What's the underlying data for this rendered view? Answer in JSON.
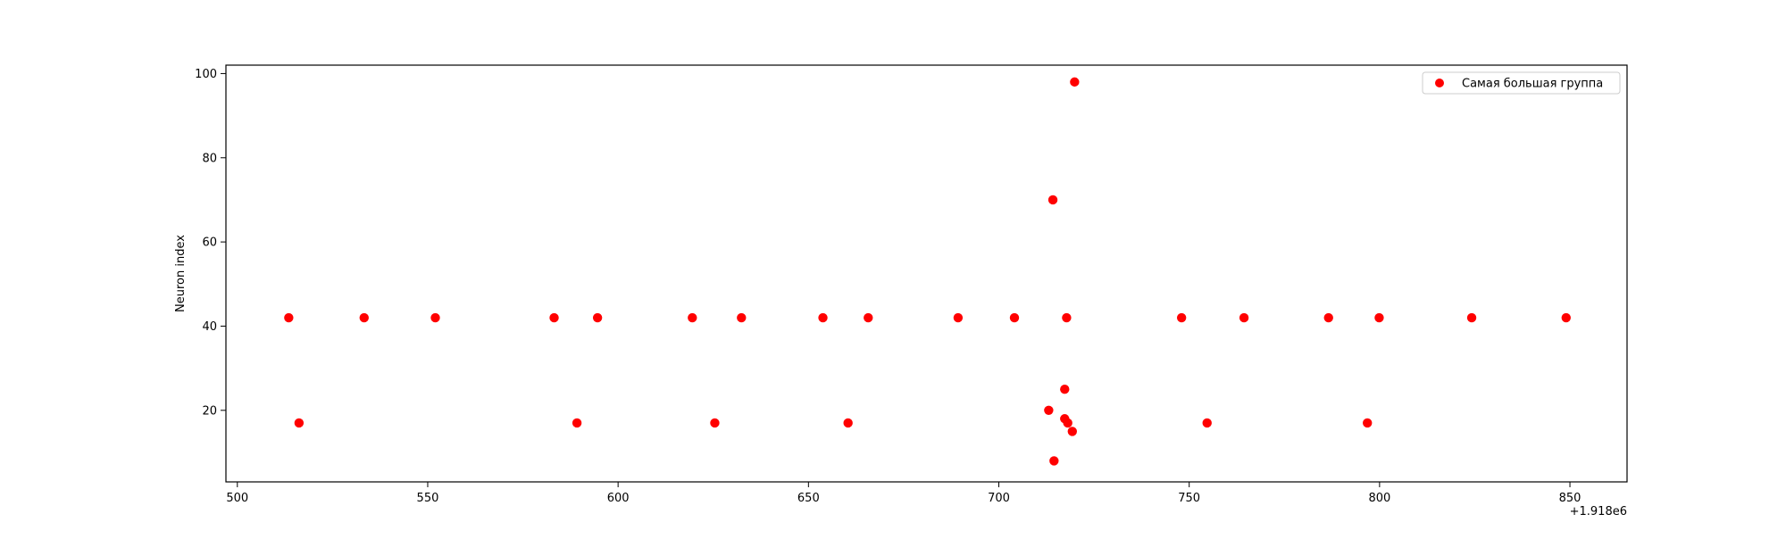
{
  "chart_data": {
    "type": "scatter",
    "xlabel": "",
    "ylabel": "Neuron index",
    "xlim": [
      497,
      865
    ],
    "ylim": [
      3,
      102
    ],
    "x_offset_label": "+1.918e6",
    "x_ticks": [
      500,
      550,
      600,
      650,
      700,
      750,
      800,
      850
    ],
    "y_ticks": [
      20,
      40,
      60,
      80,
      100
    ],
    "legend_position": "top-right",
    "grid": false,
    "series": [
      {
        "name": "Самая большая группа",
        "color": "#ff0000",
        "points": [
          {
            "x": 513.5,
            "y": 42
          },
          {
            "x": 533.3,
            "y": 42
          },
          {
            "x": 552,
            "y": 42
          },
          {
            "x": 583.2,
            "y": 42
          },
          {
            "x": 594.6,
            "y": 42
          },
          {
            "x": 619.5,
            "y": 42
          },
          {
            "x": 632.4,
            "y": 42
          },
          {
            "x": 653.8,
            "y": 42
          },
          {
            "x": 665.7,
            "y": 42
          },
          {
            "x": 689.3,
            "y": 42
          },
          {
            "x": 704.1,
            "y": 42
          },
          {
            "x": 717.8,
            "y": 42
          },
          {
            "x": 748,
            "y": 42
          },
          {
            "x": 764.4,
            "y": 42
          },
          {
            "x": 786.6,
            "y": 42
          },
          {
            "x": 799.9,
            "y": 42
          },
          {
            "x": 824.2,
            "y": 42
          },
          {
            "x": 849,
            "y": 42
          },
          {
            "x": 516.2,
            "y": 17
          },
          {
            "x": 589.2,
            "y": 17
          },
          {
            "x": 625.4,
            "y": 17
          },
          {
            "x": 660.4,
            "y": 17
          },
          {
            "x": 754.7,
            "y": 17
          },
          {
            "x": 796.8,
            "y": 17
          },
          {
            "x": 719.9,
            "y": 98
          },
          {
            "x": 714.2,
            "y": 70
          },
          {
            "x": 717.3,
            "y": 25
          },
          {
            "x": 713.1,
            "y": 20
          },
          {
            "x": 717.3,
            "y": 18
          },
          {
            "x": 718.1,
            "y": 17
          },
          {
            "x": 719.3,
            "y": 15
          },
          {
            "x": 714.5,
            "y": 8
          }
        ]
      }
    ]
  }
}
